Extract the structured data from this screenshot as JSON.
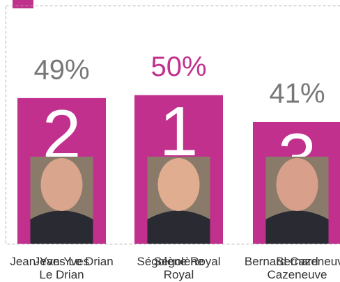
{
  "chart_data": {
    "type": "podium",
    "categories": [
      "Jean-Yves Le Drian",
      "Ségolène Royal",
      "Bernard Cazeneuve"
    ],
    "values": [
      49,
      50,
      41
    ],
    "value_labels": [
      "49%",
      "50%",
      "41%"
    ],
    "ranks": [
      2,
      1,
      3
    ],
    "color": "#c2308e",
    "label_colors": [
      "#777777",
      "#c2308e",
      "#777777"
    ],
    "ylim": [
      0,
      82
    ]
  }
}
